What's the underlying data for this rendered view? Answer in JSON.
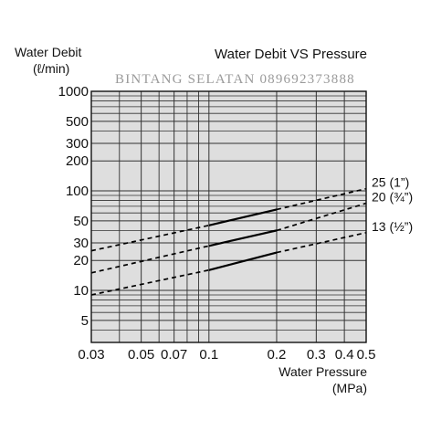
{
  "chart_data": {
    "type": "line",
    "title": "Water Debit VS Pressure",
    "ylabel_line1": "Water Debit",
    "ylabel_line2": "(ℓ/min)",
    "xlabel_line1": "Water Pressure",
    "xlabel_line2": "(MPa)",
    "watermark": "BINTANG SELATAN 089692373888",
    "x_scale": "log",
    "y_scale": "log",
    "xlim": [
      0.03,
      0.5
    ],
    "ylim": [
      3,
      1000
    ],
    "grid": true,
    "x_ticks": [
      {
        "value": 0.03,
        "label": "0.03"
      },
      {
        "value": 0.05,
        "label": "0.05"
      },
      {
        "value": 0.07,
        "label": "0.07"
      },
      {
        "value": 0.1,
        "label": "0.1"
      },
      {
        "value": 0.2,
        "label": "0.2"
      },
      {
        "value": 0.3,
        "label": "0.3"
      },
      {
        "value": 0.4,
        "label": "0.4"
      },
      {
        "value": 0.5,
        "label": "0.5"
      }
    ],
    "x_minor_grid": [
      0.04,
      0.06,
      0.08,
      0.09
    ],
    "y_ticks": [
      {
        "value": 1000,
        "label": "1000"
      },
      {
        "value": 500,
        "label": "500"
      },
      {
        "value": 300,
        "label": "300"
      },
      {
        "value": 200,
        "label": "200"
      },
      {
        "value": 100,
        "label": "100"
      },
      {
        "value": 50,
        "label": "50"
      },
      {
        "value": 30,
        "label": "30"
      },
      {
        "value": 20,
        "label": "20"
      },
      {
        "value": 10,
        "label": "10"
      },
      {
        "value": 5,
        "label": "5"
      }
    ],
    "y_minor_grid": [
      900,
      800,
      700,
      600,
      400,
      90,
      80,
      70,
      60,
      40,
      9,
      8,
      7,
      6,
      4
    ],
    "series": [
      {
        "name": "25 (1”)",
        "x": [
          0.03,
          0.1,
          0.2,
          0.5
        ],
        "y": [
          25,
          45,
          65,
          105
        ],
        "solid_range": [
          0.1,
          0.2
        ]
      },
      {
        "name": "20 (¾”)",
        "x": [
          0.03,
          0.1,
          0.2,
          0.5
        ],
        "y": [
          15,
          28,
          40,
          75
        ],
        "solid_range": [
          0.1,
          0.2
        ]
      },
      {
        "name": "13 (½”)",
        "x": [
          0.03,
          0.1,
          0.2,
          0.5
        ],
        "y": [
          9,
          16,
          24,
          38
        ],
        "solid_range": [
          0.1,
          0.2
        ]
      }
    ],
    "colors": {
      "plot_background": "#dedede",
      "grid": "#333333",
      "line": "#000000"
    }
  }
}
